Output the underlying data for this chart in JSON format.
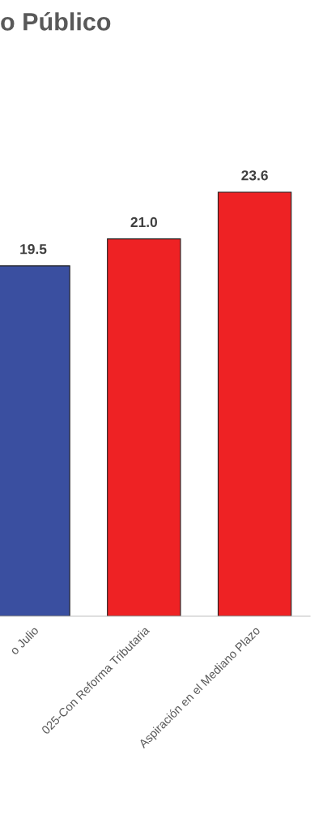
{
  "chart_data": {
    "type": "bar",
    "title": "o Público",
    "categories": [
      "o Julio",
      "025-Con Reforma Tributaria",
      "Aspiración en el Mediano Plazo"
    ],
    "values": [
      19.5,
      21.0,
      23.6
    ],
    "value_labels": [
      "19.5",
      "21.0",
      "23.6"
    ],
    "colors": [
      "#3a4fa0",
      "#ee2224",
      "#ee2224"
    ],
    "tick_labels": "x"
  }
}
